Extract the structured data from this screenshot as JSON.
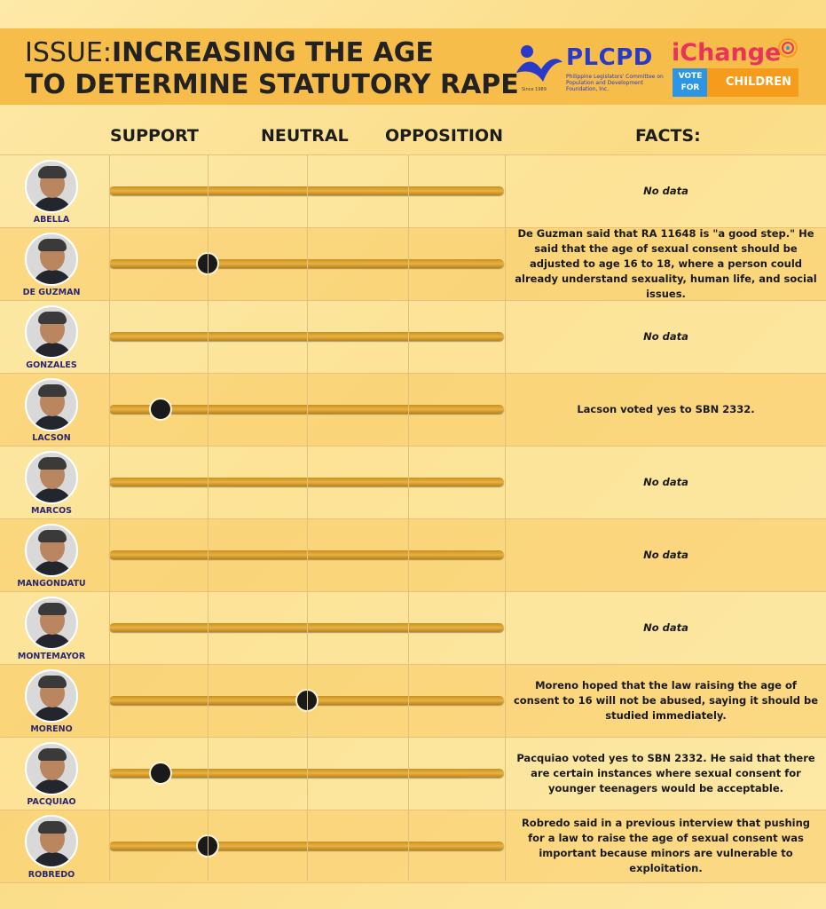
{
  "header": {
    "title_prefix": "ISSUE:",
    "title_line1": "INCREASING THE AGE",
    "title_line2": "TO DETERMINE STATUTORY RAPE",
    "plcpd": {
      "name": "PLCPD",
      "subtitle": "Philippine Legislators' Committee on Population and Development Foundation, Inc.",
      "since": "Since 1989"
    },
    "ichange": {
      "name": "iChange",
      "vote_for": "VOTE FOR",
      "children": "CHILDREN"
    }
  },
  "columns": {
    "support": "SUPPORT",
    "neutral": "NEUTRAL",
    "opposition": "OPPOSITION",
    "facts": "FACTS:"
  },
  "colors": {
    "header_band": "#f7bd4a",
    "track": "#e7b345",
    "knob": "#1a1a1a",
    "name_text": "#2b2770",
    "plcpd_blue": "#2a39c9",
    "ichange_pink": "#e8345a"
  },
  "scale_note": "position: 0 = support end, 1 = opposition end; null = no marker shown",
  "candidates": [
    {
      "name": "ABELLA",
      "position": null,
      "facts": "No data"
    },
    {
      "name": "DE GUZMAN",
      "position": 0.25,
      "facts": "De Guzman said that RA 11648 is \"a good step.\" He said that the age of sexual consent should be adjusted to age 16 to 18, where a person could already understand sexuality, human life, and social issues."
    },
    {
      "name": "GONZALES",
      "position": null,
      "facts": "No data"
    },
    {
      "name": "LACSON",
      "position": 0.13,
      "facts": "Lacson voted yes to SBN 2332."
    },
    {
      "name": "MARCOS",
      "position": null,
      "facts": "No data"
    },
    {
      "name": "MANGONDATU",
      "position": null,
      "facts": "No data"
    },
    {
      "name": "MONTEMAYOR",
      "position": null,
      "facts": "No data"
    },
    {
      "name": "MORENO",
      "position": 0.5,
      "facts": "Moreno hoped that the law raising the age of consent to 16 will not be abused, saying it should be studied immediately."
    },
    {
      "name": "PACQUIAO",
      "position": 0.13,
      "facts": "Pacquiao voted yes to SBN 2332. He said that there are certain instances where sexual consent for younger teenagers would be acceptable."
    },
    {
      "name": "ROBREDO",
      "position": 0.25,
      "facts": "Robredo said in a previous interview that pushing for a law to raise the age of sexual consent was important because minors are vulnerable to exploitation."
    }
  ]
}
